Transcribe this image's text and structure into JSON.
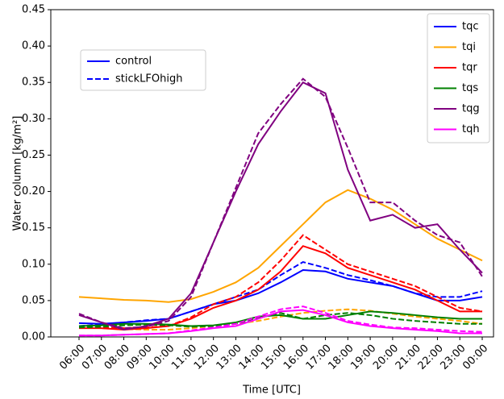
{
  "chart_data": {
    "type": "line",
    "x_label": "Time [UTC]",
    "y_label": "Water column [kg/m²]",
    "categories": [
      "06:00",
      "07:00",
      "08:00",
      "09:00",
      "10:00",
      "11:00",
      "12:00",
      "13:00",
      "14:00",
      "15:00",
      "16:00",
      "17:00",
      "18:00",
      "19:00",
      "20:00",
      "21:00",
      "22:00",
      "23:00",
      "00:00"
    ],
    "ylim": [
      0,
      0.45
    ],
    "yticks": [
      {
        "value": 0,
        "label": "0.00"
      },
      {
        "value": 0.05,
        "label": "0.05"
      },
      {
        "value": 0.1,
        "label": "0.10"
      },
      {
        "value": 0.15,
        "label": "0.15"
      },
      {
        "value": 0.2,
        "label": "0.20"
      },
      {
        "value": 0.25,
        "label": "0.25"
      },
      {
        "value": 0.3,
        "label": "0.30"
      },
      {
        "value": 0.35,
        "label": "0.35"
      },
      {
        "value": 0.4,
        "label": "0.40"
      },
      {
        "value": 0.45,
        "label": "0.45"
      }
    ],
    "styles": [
      {
        "name": "control",
        "dashed": false
      },
      {
        "name": "stickLFOhigh",
        "dashed": true
      }
    ],
    "series": [
      {
        "name": "tqc",
        "color": "#0000ff",
        "values": [
          [
            0.019,
            0.018,
            0.02,
            0.022,
            0.025,
            0.035,
            0.045,
            0.05,
            0.06,
            0.075,
            0.092,
            0.09,
            0.08,
            0.075,
            0.07,
            0.06,
            0.05,
            0.05,
            0.055
          ],
          [
            0.015,
            0.017,
            0.02,
            0.023,
            0.025,
            0.035,
            0.045,
            0.055,
            0.065,
            0.085,
            0.103,
            0.095,
            0.085,
            0.078,
            0.07,
            0.06,
            0.055,
            0.055,
            0.063
          ]
        ]
      },
      {
        "name": "tqi",
        "color": "#ffa500",
        "values": [
          [
            0.055,
            0.053,
            0.051,
            0.05,
            0.048,
            0.052,
            0.062,
            0.075,
            0.095,
            0.125,
            0.155,
            0.185,
            0.202,
            0.19,
            0.175,
            0.155,
            0.135,
            0.12,
            0.105
          ],
          [
            0.013,
            0.012,
            0.011,
            0.01,
            0.01,
            0.012,
            0.015,
            0.018,
            0.022,
            0.028,
            0.033,
            0.036,
            0.038,
            0.036,
            0.032,
            0.028,
            0.025,
            0.022,
            0.018
          ]
        ]
      },
      {
        "name": "tqr",
        "color": "#ff0000",
        "values": [
          [
            0.012,
            0.012,
            0.01,
            0.012,
            0.015,
            0.025,
            0.04,
            0.05,
            0.065,
            0.09,
            0.125,
            0.115,
            0.095,
            0.085,
            0.075,
            0.065,
            0.05,
            0.035,
            0.035
          ],
          [
            0.014,
            0.013,
            0.012,
            0.013,
            0.015,
            0.027,
            0.045,
            0.055,
            0.075,
            0.105,
            0.14,
            0.12,
            0.1,
            0.09,
            0.08,
            0.07,
            0.055,
            0.04,
            0.035
          ]
        ]
      },
      {
        "name": "tqs",
        "color": "#008000",
        "values": [
          [
            0.015,
            0.016,
            0.018,
            0.018,
            0.017,
            0.015,
            0.016,
            0.02,
            0.028,
            0.03,
            0.025,
            0.025,
            0.03,
            0.035,
            0.033,
            0.03,
            0.027,
            0.025,
            0.025
          ],
          [
            0.013,
            0.014,
            0.016,
            0.017,
            0.016,
            0.014,
            0.015,
            0.018,
            0.026,
            0.033,
            0.025,
            0.03,
            0.033,
            0.03,
            0.025,
            0.022,
            0.02,
            0.018,
            0.018
          ]
        ]
      },
      {
        "name": "tqg",
        "color": "#800080",
        "values": [
          [
            0.03,
            0.02,
            0.01,
            0.015,
            0.025,
            0.06,
            0.13,
            0.2,
            0.265,
            0.31,
            0.35,
            0.335,
            0.23,
            0.16,
            0.168,
            0.15,
            0.155,
            0.12,
            0.088
          ],
          [
            0.032,
            0.02,
            0.012,
            0.014,
            0.022,
            0.055,
            0.13,
            0.205,
            0.28,
            0.32,
            0.355,
            0.33,
            0.26,
            0.185,
            0.185,
            0.16,
            0.14,
            0.13,
            0.083
          ]
        ]
      },
      {
        "name": "tqh",
        "color": "#ff00ff",
        "values": [
          [
            0.002,
            0.002,
            0.003,
            0.004,
            0.005,
            0.008,
            0.012,
            0.015,
            0.025,
            0.035,
            0.037,
            0.03,
            0.02,
            0.015,
            0.012,
            0.01,
            0.008,
            0.005,
            0.005
          ],
          [
            0.002,
            0.002,
            0.003,
            0.004,
            0.005,
            0.009,
            0.013,
            0.018,
            0.028,
            0.038,
            0.042,
            0.033,
            0.022,
            0.017,
            0.013,
            0.012,
            0.01,
            0.008,
            0.007
          ]
        ]
      }
    ]
  }
}
